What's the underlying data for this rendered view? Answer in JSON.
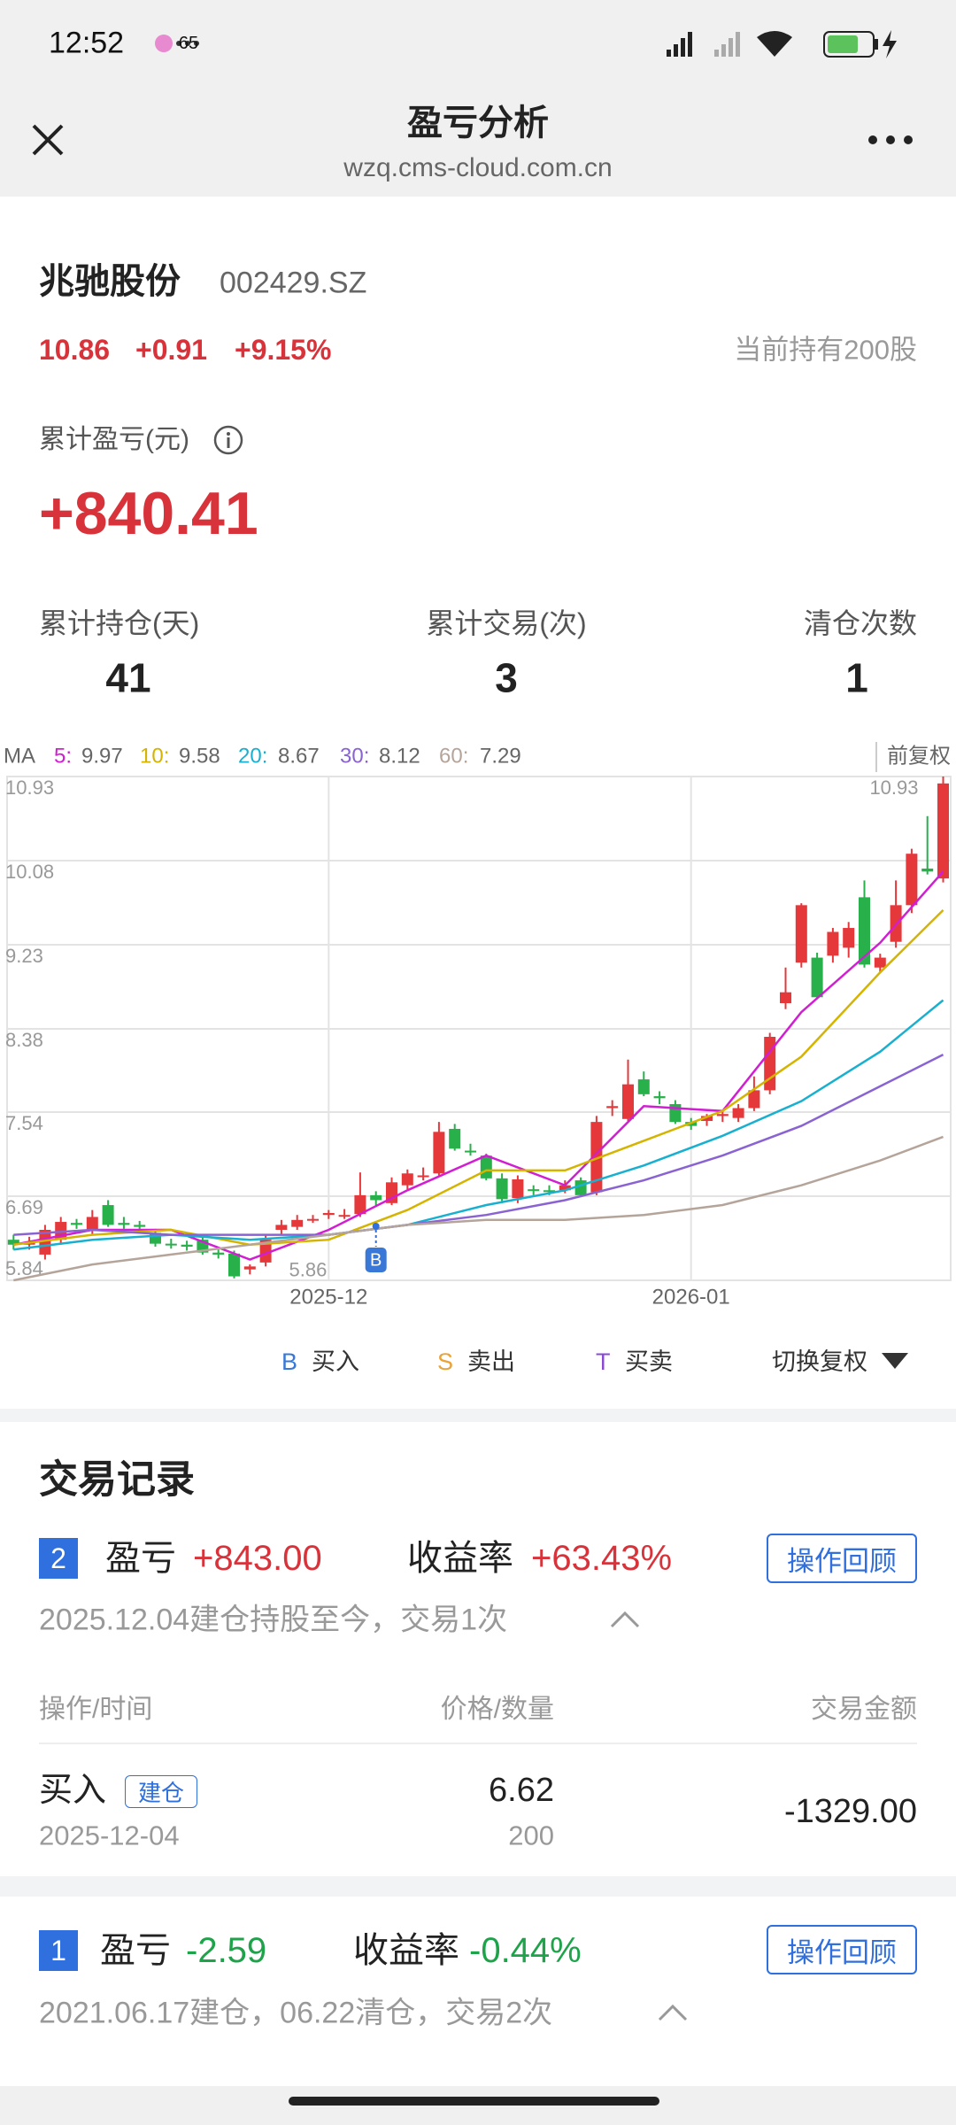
{
  "status_bar": {
    "time": "12:52",
    "battery": "65"
  },
  "header": {
    "title": "盈亏分析",
    "url": "wzq.cms-cloud.com.cn"
  },
  "stock": {
    "name": "兆驰股份",
    "code": "002429.SZ",
    "price": "10.86",
    "change": "+0.91",
    "change_pct": "+9.15%",
    "holding": "当前持有200股"
  },
  "summary": {
    "label": "累计盈亏(元)",
    "value": "+840.41",
    "stats": [
      {
        "label": "累计持仓(天)",
        "value": "41"
      },
      {
        "label": "累计交易(次)",
        "value": "3"
      },
      {
        "label": "清仓次数",
        "value": "1"
      }
    ]
  },
  "chart_data": {
    "type": "candlestick",
    "ma_label": "MA",
    "adjust_label": "前复权",
    "ylim": [
      5.84,
      10.93
    ],
    "yticks": [
      10.93,
      10.08,
      9.23,
      8.38,
      7.54,
      6.69,
      5.84
    ],
    "xticks": [
      {
        "value": 20,
        "label": "2025-12"
      },
      {
        "value": 43,
        "label": "2026-01"
      }
    ],
    "grid": true,
    "up_color": "#e5383b",
    "down_color": "#28b04b",
    "max": 10.93,
    "min": 5.86,
    "buy_marker": {
      "index": 23,
      "label": "B"
    },
    "candles": [
      {
        "open": 6.25,
        "high": 6.3,
        "low": 6.15,
        "close": 6.2
      },
      {
        "open": 6.2,
        "high": 6.28,
        "low": 6.15,
        "close": 6.22
      },
      {
        "open": 6.1,
        "high": 6.4,
        "low": 6.05,
        "close": 6.35
      },
      {
        "open": 6.25,
        "high": 6.48,
        "low": 6.2,
        "close": 6.43
      },
      {
        "open": 6.42,
        "high": 6.46,
        "low": 6.36,
        "close": 6.4
      },
      {
        "open": 6.35,
        "high": 6.55,
        "low": 6.3,
        "close": 6.48
      },
      {
        "open": 6.6,
        "high": 6.65,
        "low": 6.38,
        "close": 6.4
      },
      {
        "open": 6.42,
        "high": 6.48,
        "low": 6.36,
        "close": 6.4
      },
      {
        "open": 6.4,
        "high": 6.44,
        "low": 6.34,
        "close": 6.38
      },
      {
        "open": 6.32,
        "high": 6.36,
        "low": 6.18,
        "close": 6.21
      },
      {
        "open": 6.21,
        "high": 6.26,
        "low": 6.16,
        "close": 6.2
      },
      {
        "open": 6.2,
        "high": 6.24,
        "low": 6.14,
        "close": 6.18
      },
      {
        "open": 6.25,
        "high": 6.28,
        "low": 6.1,
        "close": 6.12
      },
      {
        "open": 6.12,
        "high": 6.16,
        "low": 6.06,
        "close": 6.1
      },
      {
        "open": 6.11,
        "high": 6.14,
        "low": 5.86,
        "close": 5.88
      },
      {
        "open": 5.95,
        "high": 6.0,
        "low": 5.9,
        "close": 5.98
      },
      {
        "open": 6.02,
        "high": 6.3,
        "low": 5.98,
        "close": 6.25
      },
      {
        "open": 6.35,
        "high": 6.45,
        "low": 6.3,
        "close": 6.4
      },
      {
        "open": 6.38,
        "high": 6.5,
        "low": 6.35,
        "close": 6.45
      },
      {
        "open": 6.45,
        "high": 6.5,
        "low": 6.42,
        "close": 6.46
      },
      {
        "open": 6.5,
        "high": 6.55,
        "low": 6.46,
        "close": 6.52
      },
      {
        "open": 6.5,
        "high": 6.56,
        "low": 6.46,
        "close": 6.5
      },
      {
        "open": 6.51,
        "high": 6.93,
        "low": 6.48,
        "close": 6.7
      },
      {
        "open": 6.7,
        "high": 6.74,
        "low": 6.6,
        "close": 6.65
      },
      {
        "open": 6.62,
        "high": 6.88,
        "low": 6.6,
        "close": 6.83
      },
      {
        "open": 6.8,
        "high": 6.96,
        "low": 6.76,
        "close": 6.92
      },
      {
        "open": 6.9,
        "high": 6.98,
        "low": 6.85,
        "close": 6.9
      },
      {
        "open": 6.92,
        "high": 7.44,
        "low": 6.9,
        "close": 7.34
      },
      {
        "open": 7.37,
        "high": 7.42,
        "low": 7.15,
        "close": 7.17
      },
      {
        "open": 7.15,
        "high": 7.22,
        "low": 7.1,
        "close": 7.14
      },
      {
        "open": 7.1,
        "high": 7.12,
        "low": 6.85,
        "close": 6.87
      },
      {
        "open": 6.87,
        "high": 6.92,
        "low": 6.62,
        "close": 6.66
      },
      {
        "open": 6.67,
        "high": 6.9,
        "low": 6.62,
        "close": 6.86
      },
      {
        "open": 6.76,
        "high": 6.8,
        "low": 6.7,
        "close": 6.75
      },
      {
        "open": 6.75,
        "high": 6.8,
        "low": 6.7,
        "close": 6.74
      },
      {
        "open": 6.75,
        "high": 6.85,
        "low": 6.72,
        "close": 6.8
      },
      {
        "open": 6.85,
        "high": 6.88,
        "low": 6.68,
        "close": 6.7
      },
      {
        "open": 6.73,
        "high": 7.5,
        "low": 6.7,
        "close": 7.44
      },
      {
        "open": 7.58,
        "high": 7.66,
        "low": 7.5,
        "close": 7.6
      },
      {
        "open": 7.47,
        "high": 8.07,
        "low": 7.45,
        "close": 7.82
      },
      {
        "open": 7.87,
        "high": 7.95,
        "low": 7.7,
        "close": 7.72
      },
      {
        "open": 7.7,
        "high": 7.75,
        "low": 7.62,
        "close": 7.68
      },
      {
        "open": 7.62,
        "high": 7.66,
        "low": 7.42,
        "close": 7.44
      },
      {
        "open": 7.44,
        "high": 7.48,
        "low": 7.36,
        "close": 7.4
      },
      {
        "open": 7.45,
        "high": 7.52,
        "low": 7.4,
        "close": 7.5
      },
      {
        "open": 7.5,
        "high": 7.56,
        "low": 7.44,
        "close": 7.52
      },
      {
        "open": 7.48,
        "high": 7.62,
        "low": 7.44,
        "close": 7.58
      },
      {
        "open": 7.58,
        "high": 7.9,
        "low": 7.55,
        "close": 7.76
      },
      {
        "open": 7.76,
        "high": 8.34,
        "low": 7.72,
        "close": 8.3
      },
      {
        "open": 8.64,
        "high": 9.0,
        "low": 8.58,
        "close": 8.75
      },
      {
        "open": 9.05,
        "high": 9.65,
        "low": 9.0,
        "close": 9.63
      },
      {
        "open": 9.1,
        "high": 9.15,
        "low": 8.68,
        "close": 8.7
      },
      {
        "open": 9.12,
        "high": 9.4,
        "low": 9.05,
        "close": 9.36
      },
      {
        "open": 9.2,
        "high": 9.46,
        "low": 9.1,
        "close": 9.4
      },
      {
        "open": 9.71,
        "high": 9.88,
        "low": 9.0,
        "close": 9.03
      },
      {
        "open": 9.0,
        "high": 9.14,
        "low": 8.95,
        "close": 9.1
      },
      {
        "open": 9.26,
        "high": 9.88,
        "low": 9.2,
        "close": 9.63
      },
      {
        "open": 9.63,
        "high": 10.2,
        "low": 9.55,
        "close": 10.15
      },
      {
        "open": 10.0,
        "high": 10.53,
        "low": 9.94,
        "close": 9.97
      },
      {
        "open": 9.9,
        "high": 10.93,
        "low": 9.86,
        "close": 10.86
      }
    ],
    "ma_x": [
      0,
      5,
      10,
      15,
      20,
      25,
      30,
      35,
      40,
      45,
      50,
      55,
      59
    ],
    "series": [
      {
        "name": "5:",
        "color": "#d21ed2",
        "values": [
          6.2,
          6.35,
          6.35,
          6.05,
          6.35,
          6.75,
          7.1,
          6.8,
          7.6,
          7.55,
          8.55,
          9.25,
          9.97
        ]
      },
      {
        "name": "10:",
        "color": "#d4b400",
        "values": [
          6.2,
          6.3,
          6.35,
          6.2,
          6.25,
          6.55,
          6.95,
          6.95,
          7.25,
          7.55,
          8.1,
          8.95,
          9.58
        ]
      },
      {
        "name": "20:",
        "color": "#19b0d0",
        "values": [
          6.15,
          6.25,
          6.3,
          6.25,
          6.3,
          6.4,
          6.6,
          6.75,
          7.0,
          7.3,
          7.65,
          8.15,
          8.67
        ]
      },
      {
        "name": "30:",
        "color": "#8a63d2",
        "values": [
          6.3,
          6.35,
          6.3,
          6.3,
          6.3,
          6.4,
          6.5,
          6.65,
          6.85,
          7.1,
          7.4,
          7.8,
          8.12
        ]
      },
      {
        "name": "60:",
        "color": "#b5a49a",
        "values": [
          5.84,
          6.0,
          6.1,
          6.2,
          6.3,
          6.4,
          6.45,
          6.45,
          6.5,
          6.6,
          6.8,
          7.05,
          7.29
        ]
      }
    ]
  },
  "chart_legend": {
    "items": [
      {
        "symbol": "B",
        "label": "买入"
      },
      {
        "symbol": "S",
        "label": "卖出"
      },
      {
        "symbol": "T",
        "label": "买卖"
      }
    ],
    "adjust": "切换复权"
  },
  "records": {
    "title": "交易记录",
    "columns": [
      "操作/时间",
      "价格/数量",
      "交易金额"
    ],
    "items": [
      {
        "no": "2",
        "pnl_label": "盈亏",
        "pnl": "+843.00",
        "rate_label": "收益率",
        "rate": "+63.43%",
        "button": "操作回顾",
        "summary": "2025.12.04建仓持股至今，交易1次",
        "trades": [
          {
            "action": "买入",
            "tag": "建仓",
            "date": "2025-12-04",
            "price": "6.62",
            "qty": "200",
            "amount": "-1329.00"
          }
        ]
      },
      {
        "no": "1",
        "pnl_label": "盈亏",
        "pnl": "-2.59",
        "rate_label": "收益率",
        "rate": "-0.44%",
        "button": "操作回顾",
        "summary": "2021.06.17建仓，06.22清仓，交易2次"
      }
    ]
  }
}
